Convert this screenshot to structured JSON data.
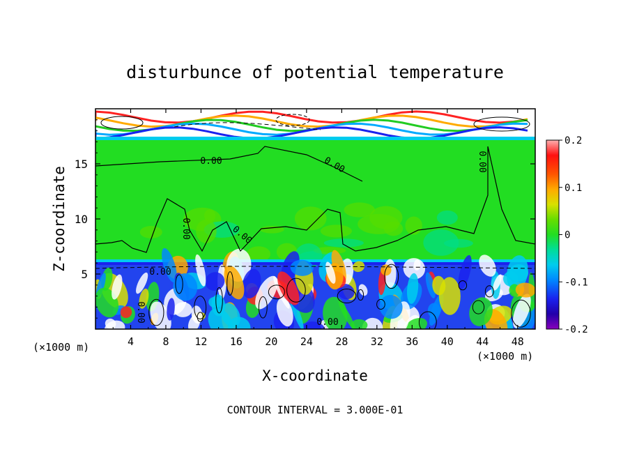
{
  "chart_data": {
    "type": "heatmap",
    "title": "disturbunce of potential temperature",
    "xlabel": "X-coordinate",
    "ylabel": "Z-coordinate",
    "x_unit_left": "(×1000 m)",
    "x_unit_right": "(×1000 m)",
    "xlim": [
      0,
      50
    ],
    "ylim": [
      0,
      20
    ],
    "x_ticks": [
      "4",
      "8",
      "12",
      "16",
      "20",
      "24",
      "28",
      "32",
      "36",
      "40",
      "44",
      "48"
    ],
    "y_ticks": [
      "5",
      "10",
      "15"
    ],
    "colorbar": {
      "range": [
        -0.2,
        0.2
      ],
      "tick_labels": [
        "0.2",
        "0.1",
        "0",
        "-0.1",
        "-0.2"
      ]
    },
    "contour_labels": [
      "0.00",
      "0.00",
      "0.00",
      "0.00",
      "0.00",
      "0.00",
      "0.00",
      "0.00"
    ],
    "footer": "CONTOUR INTERVAL = 3.000E-01"
  }
}
